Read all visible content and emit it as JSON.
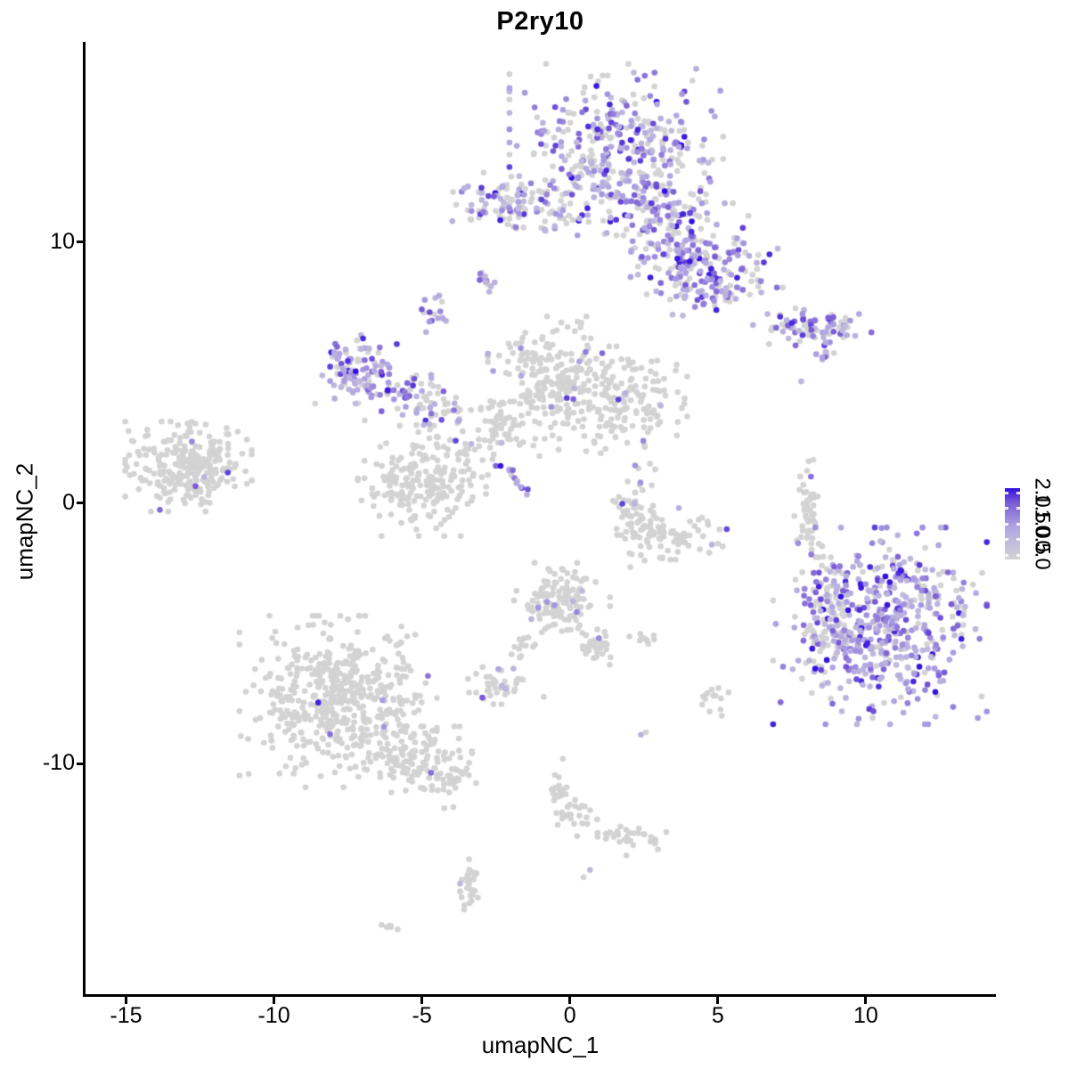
{
  "title": "P2ry10",
  "colors": {
    "background": "#ffffff",
    "axis": "#000000",
    "text": "#000000",
    "point_low": "#d3d3d3",
    "point_mid1": "#b1a6e2",
    "point_mid2": "#7a5cd6",
    "point_high": "#2f0ce0"
  },
  "chart_data": {
    "type": "scatter",
    "title": "P2ry10",
    "xlabel": "umapNC_1",
    "ylabel": "umapNC_2",
    "xlim": [
      -16.4,
      14.4
    ],
    "ylim": [
      -18.9,
      17.65
    ],
    "grid": false,
    "x_ticks": [
      {
        "value": -15,
        "label": "-15"
      },
      {
        "value": -10,
        "label": "-10"
      },
      {
        "value": -5,
        "label": "-5"
      },
      {
        "value": 0,
        "label": "0"
      },
      {
        "value": 5,
        "label": "5"
      },
      {
        "value": 10,
        "label": "10"
      }
    ],
    "y_ticks": [
      {
        "value": 10,
        "label": "10"
      },
      {
        "value": 0,
        "label": "0"
      },
      {
        "value": -10,
        "label": "-10"
      }
    ],
    "legend": {
      "position": "right",
      "orientation": "vertical-colorbar",
      "value_min": 0.0,
      "value_max": 2.0,
      "tick_labels": [
        "2.0",
        "1.5",
        "1.0",
        "0.5",
        "0.0"
      ],
      "low_color": "#d3d3d3",
      "high_color": "#2f0ce0"
    },
    "point_radius_px": 3.3,
    "clusters": [
      {
        "name": "top-main",
        "x": 1.57,
        "y": 13.55,
        "sx": 1.57,
        "sy": 1.43,
        "n": 380,
        "expr": 0.62
      },
      {
        "name": "top-right-arm",
        "x": 4.52,
        "y": 9.45,
        "sx": 1.2,
        "sy": 0.89,
        "n": 170,
        "expr": 0.62
      },
      {
        "name": "top-bridge",
        "x": 2.8,
        "y": 11.19,
        "sx": 0.78,
        "sy": 0.68,
        "n": 80,
        "expr": 0.55
      },
      {
        "name": "top-sparse-row",
        "x": -0.12,
        "y": 10.99,
        "sx": 0.54,
        "sy": 0.24,
        "n": 22,
        "expr": 0.45
      },
      {
        "name": "arm-lower-lobe",
        "x": 4.82,
        "y": 8.29,
        "sx": 0.84,
        "sy": 0.48,
        "n": 60,
        "expr": 0.55
      },
      {
        "name": "upper-left",
        "x": -2.11,
        "y": 11.5,
        "sx": 0.81,
        "sy": 0.51,
        "n": 90,
        "expr": 0.5
      },
      {
        "name": "purple-streak-a",
        "x": -2.86,
        "y": 8.5,
        "sx": 0.1,
        "sy": 0.1,
        "n": 12,
        "expr": 0.9,
        "elong": [
          0.18,
          -0.31
        ]
      },
      {
        "name": "purple-small",
        "x": -4.58,
        "y": 7.24,
        "sx": 0.21,
        "sy": 0.31,
        "n": 16,
        "expr": 0.85
      },
      {
        "name": "midleft-main",
        "x": -7.23,
        "y": 5.15,
        "sx": 0.6,
        "sy": 0.58,
        "n": 100,
        "expr": 0.72
      },
      {
        "name": "midleft-chain",
        "x": -5.66,
        "y": 4.27,
        "sx": 0.72,
        "sy": 0.48,
        "n": 55,
        "expr": 0.55
      },
      {
        "name": "midleft-tail",
        "x": -4.31,
        "y": 3.45,
        "sx": 0.42,
        "sy": 0.38,
        "n": 30,
        "expr": 0.5
      },
      {
        "name": "center-mtn-left",
        "x": -0.84,
        "y": 4.81,
        "sx": 0.84,
        "sy": 1.02,
        "n": 190,
        "expr": 0.03
      },
      {
        "name": "center-mtn-right",
        "x": 1.69,
        "y": 3.96,
        "sx": 0.99,
        "sy": 0.89,
        "n": 170,
        "expr": 0.04
      },
      {
        "name": "center-connector",
        "x": -2.41,
        "y": 2.87,
        "sx": 0.6,
        "sy": 0.61,
        "n": 70,
        "expr": 0.06
      },
      {
        "name": "lowerleft-grey",
        "x": -4.82,
        "y": 0.85,
        "sx": 1.02,
        "sy": 0.92,
        "n": 210,
        "expr": 0.02
      },
      {
        "name": "purple-streak-b",
        "x": -1.87,
        "y": 0.99,
        "sx": 0.08,
        "sy": 0.08,
        "n": 13,
        "expr": 0.95,
        "elong": [
          0.45,
          -0.56
        ]
      },
      {
        "name": "far-left",
        "x": -12.89,
        "y": 1.4,
        "sx": 0.93,
        "sy": 0.75,
        "n": 270,
        "expr": 0.012
      },
      {
        "name": "right-elongated",
        "x": 8.19,
        "y": 6.76,
        "sx": 0.87,
        "sy": 0.31,
        "n": 85,
        "expr": 0.62
      },
      {
        "name": "right-elong-tail",
        "x": 8.67,
        "y": 5.77,
        "sx": 0.18,
        "sy": 0.17,
        "n": 10,
        "expr": 0.7
      },
      {
        "name": "iso-purple-1",
        "x": 7.83,
        "y": 4.68,
        "sx": 0.01,
        "sy": 0.01,
        "n": 1,
        "expr": 1.0
      },
      {
        "name": "banana-strip",
        "x": 8.07,
        "y": -0.03,
        "sx": 0.21,
        "sy": 0.82,
        "n": 48,
        "expr": 0.07
      },
      {
        "name": "crescent-left",
        "x": 2.29,
        "y": -0.41,
        "sx": 0.36,
        "sy": 0.89,
        "n": 60,
        "expr": 0.02
      },
      {
        "name": "crescent-bottom",
        "x": 3.37,
        "y": -1.23,
        "sx": 0.84,
        "sy": 0.41,
        "n": 70,
        "expr": 0.02
      },
      {
        "name": "big-right",
        "x": 10.48,
        "y": -4.71,
        "sx": 1.57,
        "sy": 1.64,
        "n": 520,
        "expr": 0.76
      },
      {
        "name": "big-right-fringe",
        "x": 8.67,
        "y": -4.68,
        "sx": 0.51,
        "sy": 1.13,
        "n": 70,
        "expr": 0.12
      },
      {
        "name": "sparse-above-right",
        "x": 7.92,
        "y": -0.92,
        "sx": 0.27,
        "sy": 0.31,
        "n": 6,
        "expr": 0.1
      },
      {
        "name": "center-small",
        "x": -0.3,
        "y": -3.86,
        "sx": 0.72,
        "sy": 0.68,
        "n": 130,
        "expr": 0.05
      },
      {
        "name": "center-small-tail",
        "x": 0.84,
        "y": -5.43,
        "sx": 0.3,
        "sy": 0.38,
        "n": 28,
        "expr": 0.04
      },
      {
        "name": "center-small-chain",
        "x": -1.66,
        "y": -5.53,
        "sx": 0.21,
        "sy": 0.38,
        "n": 14,
        "expr": 0.05
      },
      {
        "name": "small-low",
        "x": -2.41,
        "y": -7.0,
        "sx": 0.45,
        "sy": 0.31,
        "n": 42,
        "expr": 0.07
      },
      {
        "name": "bottomleft-main",
        "x": -7.83,
        "y": -7.61,
        "sx": 1.45,
        "sy": 1.43,
        "n": 520,
        "expr": 0.004
      },
      {
        "name": "bottomleft-tail",
        "x": -5.18,
        "y": -9.83,
        "sx": 0.84,
        "sy": 0.55,
        "n": 110,
        "expr": 0.004
      },
      {
        "name": "bottomleft-tip",
        "x": -3.86,
        "y": -10.61,
        "sx": 0.3,
        "sy": 0.24,
        "n": 22,
        "expr": 0.0
      },
      {
        "name": "two-dots",
        "x": -4.19,
        "y": -11.67,
        "sx": 0.2,
        "sy": 0.05,
        "n": 2,
        "expr": 0.0
      },
      {
        "name": "chain-top",
        "x": -0.45,
        "y": -10.75,
        "sx": 0.15,
        "sy": 0.41,
        "n": 14,
        "expr": 0.1
      },
      {
        "name": "chain-mid",
        "x": -0.12,
        "y": -11.84,
        "sx": 0.27,
        "sy": 0.41,
        "n": 24,
        "expr": 0.02
      },
      {
        "name": "dots-right",
        "x": 0.66,
        "y": -12.05,
        "sx": 0.21,
        "sy": 0.12,
        "n": 6,
        "expr": 0.0
      },
      {
        "name": "streak-right",
        "x": 2.11,
        "y": -12.8,
        "sx": 0.51,
        "sy": 0.31,
        "n": 34,
        "expr": 0.01
      },
      {
        "name": "bottom-pair",
        "x": 0.54,
        "y": -14.23,
        "sx": 0.08,
        "sy": 0.08,
        "n": 2,
        "expr": 0.5
      },
      {
        "name": "vert-small",
        "x": -3.46,
        "y": -14.64,
        "sx": 0.18,
        "sy": 0.51,
        "n": 28,
        "expr": 0.05
      },
      {
        "name": "tiny-streak",
        "x": -6.05,
        "y": -16.28,
        "sx": 0.15,
        "sy": 0.08,
        "n": 6,
        "expr": 0.0
      },
      {
        "name": "small-grey-1",
        "x": 2.62,
        "y": -5.19,
        "sx": 0.3,
        "sy": 0.14,
        "n": 10,
        "expr": 0.15
      },
      {
        "name": "small-grey-2",
        "x": 4.91,
        "y": -7.54,
        "sx": 0.21,
        "sy": 0.27,
        "n": 14,
        "expr": 0.1
      },
      {
        "name": "single-grey-1",
        "x": -0.9,
        "y": -7.44,
        "sx": 0.01,
        "sy": 0.01,
        "n": 1,
        "expr": 0.0
      },
      {
        "name": "single-grey-2",
        "x": 4.55,
        "y": -7.51,
        "sx": 0.01,
        "sy": 0.01,
        "n": 1,
        "expr": 0.0
      },
      {
        "name": "iso-purple-2",
        "x": 1.87,
        "y": 4.23,
        "sx": 0.01,
        "sy": 0.01,
        "n": 1,
        "expr": 1.0
      },
      {
        "name": "iso-purple-3",
        "x": 2.47,
        "y": 2.39,
        "sx": 0.01,
        "sy": 0.01,
        "n": 1,
        "expr": 1.0
      },
      {
        "name": "iso-purple-4",
        "x": 3.67,
        "y": -0.17,
        "sx": 0.01,
        "sy": 0.01,
        "n": 1,
        "expr": 1.0
      },
      {
        "name": "pair-2",
        "x": 2.47,
        "y": -8.81,
        "sx": 0.1,
        "sy": 0.1,
        "n": 2,
        "expr": 0.5
      }
    ]
  }
}
